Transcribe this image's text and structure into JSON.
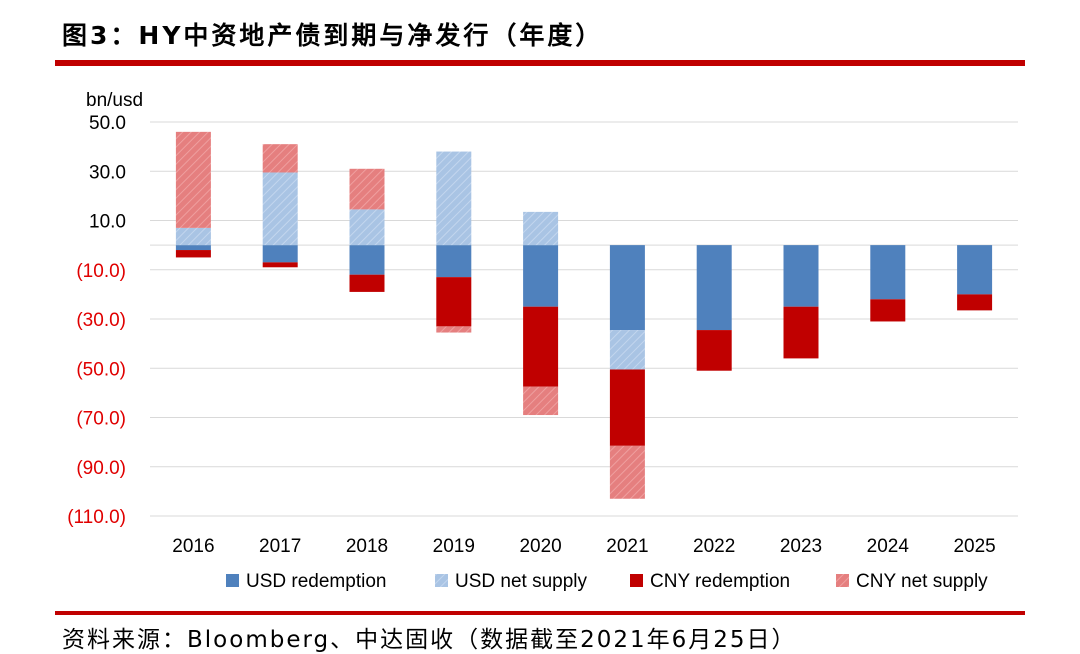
{
  "figure": {
    "title": "图3：HY中资地产债到期与净发行（年度）",
    "source": "资料来源：Bloomberg、中达固收（数据截至2021年6月25日）"
  },
  "chart_data": {
    "type": "bar",
    "stacked": true,
    "ylabel": "bn/usd",
    "ylim": [
      -110,
      50
    ],
    "yticks": [
      50,
      30,
      10,
      -10,
      -30,
      -50,
      -70,
      -90,
      -110
    ],
    "ytick_labels": [
      "50.0",
      "30.0",
      "10.0",
      "(10.0)",
      "(30.0)",
      "(50.0)",
      "(70.0)",
      "(90.0)",
      "(110.0)"
    ],
    "negative_tick_color": "#e00000",
    "grid": true,
    "legend_position": "bottom",
    "categories": [
      "2016",
      "2017",
      "2018",
      "2019",
      "2020",
      "2021",
      "2022",
      "2023",
      "2024",
      "2025"
    ],
    "series": [
      {
        "name": "USD redemption",
        "color": "#4f81bd",
        "hatch": false,
        "values": [
          -2,
          -7,
          -12,
          -13,
          -25,
          -34.5,
          -34.5,
          -25,
          -22,
          -20
        ]
      },
      {
        "name": "USD net supply",
        "color": "#a9c4e4",
        "hatch": true,
        "values": [
          7,
          29.5,
          14.5,
          38,
          13.5,
          -16,
          0,
          0,
          0,
          0
        ]
      },
      {
        "name": "CNY redemption",
        "color": "#c00000",
        "hatch": false,
        "values": [
          -3,
          -2,
          -7,
          -20,
          -32.5,
          -31,
          -16.5,
          -21,
          -9,
          -6.5
        ]
      },
      {
        "name": "CNY net supply",
        "color": "#e57f7f",
        "hatch": true,
        "values": [
          39,
          11.5,
          16.5,
          -2.5,
          -11.5,
          -21.5,
          0,
          0,
          0,
          0
        ]
      }
    ]
  }
}
